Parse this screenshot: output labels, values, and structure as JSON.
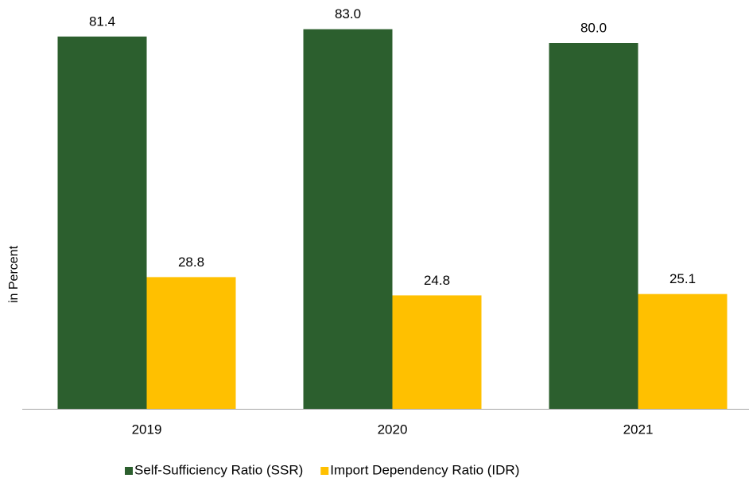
{
  "chart_data": {
    "type": "bar",
    "y_label": "in Percent",
    "categories": [
      "2019",
      "2020",
      "2021"
    ],
    "series": [
      {
        "name": "Self-Sufficiency Ratio (SSR)",
        "color": "#2c5f2e",
        "values": [
          81.4,
          83.0,
          80.0
        ],
        "value_labels": [
          "81.4",
          "83.0",
          "80.0"
        ]
      },
      {
        "name": "Import Dependency Ratio (IDR)",
        "color": "#ffc000",
        "values": [
          28.8,
          24.8,
          25.1
        ],
        "value_labels": [
          "28.8",
          "24.8",
          "25.1"
        ]
      }
    ],
    "ylim": [
      0,
      85
    ],
    "legend": "bottom"
  }
}
